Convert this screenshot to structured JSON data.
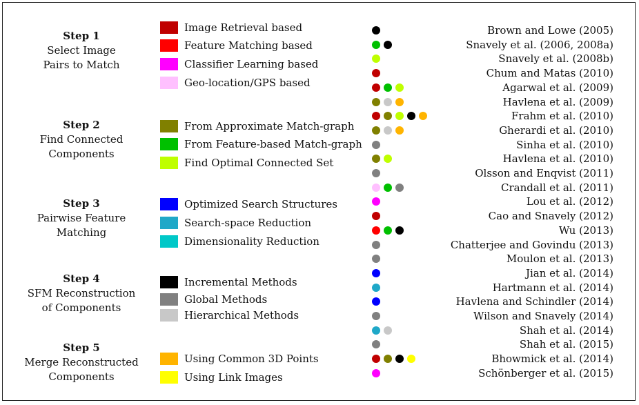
{
  "steps": [
    {
      "title": "Step 1",
      "line1": "Select Image",
      "line2": "Pairs to Match"
    },
    {
      "title": "Step 2",
      "line1": "Find Connected",
      "line2": "Components"
    },
    {
      "title": "Step 3",
      "line1": "Pairwise Feature",
      "line2": "Matching"
    },
    {
      "title": "Step 4",
      "line1": "SFM Reconstruction",
      "line2": "of Components"
    },
    {
      "title": "Step 5",
      "line1": "Merge Reconstructed",
      "line2": "Components"
    }
  ],
  "categories": [
    {
      "id": "image_retrieval",
      "label": "Image Retrieval based",
      "color": "#c00000"
    },
    {
      "id": "feature_matching",
      "label": "Feature Matching based",
      "color": "#ff0000"
    },
    {
      "id": "classifier",
      "label": "Classifier Learning based",
      "color": "#ff00ff"
    },
    {
      "id": "geo",
      "label": "Geo-location/GPS based",
      "color": "#ffc0ff"
    },
    {
      "id": "approx_graph",
      "label": "From Approximate Match-graph",
      "color": "#808000"
    },
    {
      "id": "feature_graph",
      "label": "From Feature-based Match-graph",
      "color": "#00c000"
    },
    {
      "id": "optimal_set",
      "label": "Find Optimal Connected Set",
      "color": "#bfff00"
    },
    {
      "id": "search_struct",
      "label": "Optimized Search Structures",
      "color": "#0000ff"
    },
    {
      "id": "search_space",
      "label": "Search-space Reduction",
      "color": "#1fa8c8"
    },
    {
      "id": "dim_red",
      "label": "Dimensionality Reduction",
      "color": "#00c8c8"
    },
    {
      "id": "incremental",
      "label": "Incremental Methods",
      "color": "#000000"
    },
    {
      "id": "global",
      "label": "Global Methods",
      "color": "#808080"
    },
    {
      "id": "hierarchical",
      "label": "Hierarchical Methods",
      "color": "#c8c8c8"
    },
    {
      "id": "common_3d",
      "label": "Using Common 3D Points",
      "color": "#ffb400"
    },
    {
      "id": "link_images",
      "label": "Using Link Images",
      "color": "#ffff00"
    }
  ],
  "references": [
    {
      "name": "Brown and Lowe (2005)",
      "methods": [
        "incremental"
      ]
    },
    {
      "name": "Snavely et al. (2006, 2008a)",
      "methods": [
        "feature_graph",
        "incremental"
      ]
    },
    {
      "name": "Snavely et al. (2008b)",
      "methods": [
        "optimal_set"
      ]
    },
    {
      "name": "Chum and Matas (2010)",
      "methods": [
        "image_retrieval"
      ]
    },
    {
      "name": "Agarwal et al. (2009)",
      "methods": [
        "image_retrieval",
        "feature_graph",
        "optimal_set"
      ]
    },
    {
      "name": "Havlena et al. (2009)",
      "methods": [
        "approx_graph",
        "hierarchical",
        "common_3d"
      ]
    },
    {
      "name": "Frahm et al. (2010)",
      "methods": [
        "image_retrieval",
        "approx_graph",
        "optimal_set",
        "incremental",
        "common_3d"
      ]
    },
    {
      "name": "Gherardi et al. (2010)",
      "methods": [
        "approx_graph",
        "hierarchical",
        "common_3d"
      ]
    },
    {
      "name": "Sinha et al. (2010)",
      "methods": [
        "global"
      ]
    },
    {
      "name": "Havlena et al. (2010)",
      "methods": [
        "approx_graph",
        "optimal_set"
      ]
    },
    {
      "name": "Olsson and Enqvist (2011)",
      "methods": [
        "global"
      ]
    },
    {
      "name": "Crandall et al. (2011)",
      "methods": [
        "geo",
        "feature_graph",
        "global"
      ]
    },
    {
      "name": "Lou et al. (2012)",
      "methods": [
        "classifier"
      ]
    },
    {
      "name": "Cao and Snavely (2012)",
      "methods": [
        "image_retrieval"
      ]
    },
    {
      "name": "Wu (2013)",
      "methods": [
        "feature_matching",
        "feature_graph",
        "incremental"
      ]
    },
    {
      "name": "Chatterjee and Govindu (2013)",
      "methods": [
        "global"
      ]
    },
    {
      "name": "Moulon et al. (2013)",
      "methods": [
        "global"
      ]
    },
    {
      "name": "Jian et al. (2014)",
      "methods": [
        "search_struct"
      ]
    },
    {
      "name": "Hartmann et al. (2014)",
      "methods": [
        "search_space"
      ]
    },
    {
      "name": "Havlena and Schindler (2014)",
      "methods": [
        "search_struct"
      ]
    },
    {
      "name": "Wilson and Snavely (2014)",
      "methods": [
        "global"
      ]
    },
    {
      "name": "Shah et al. (2014)",
      "methods": [
        "search_space",
        "hierarchical"
      ]
    },
    {
      "name": "Shah et al. (2015)",
      "methods": [
        "global"
      ]
    },
    {
      "name": "Bhowmick et al. (2014)",
      "methods": [
        "image_retrieval",
        "approx_graph",
        "incremental",
        "link_images"
      ]
    },
    {
      "name": "Schönberger et al. (2015)",
      "methods": [
        "classifier"
      ]
    }
  ]
}
